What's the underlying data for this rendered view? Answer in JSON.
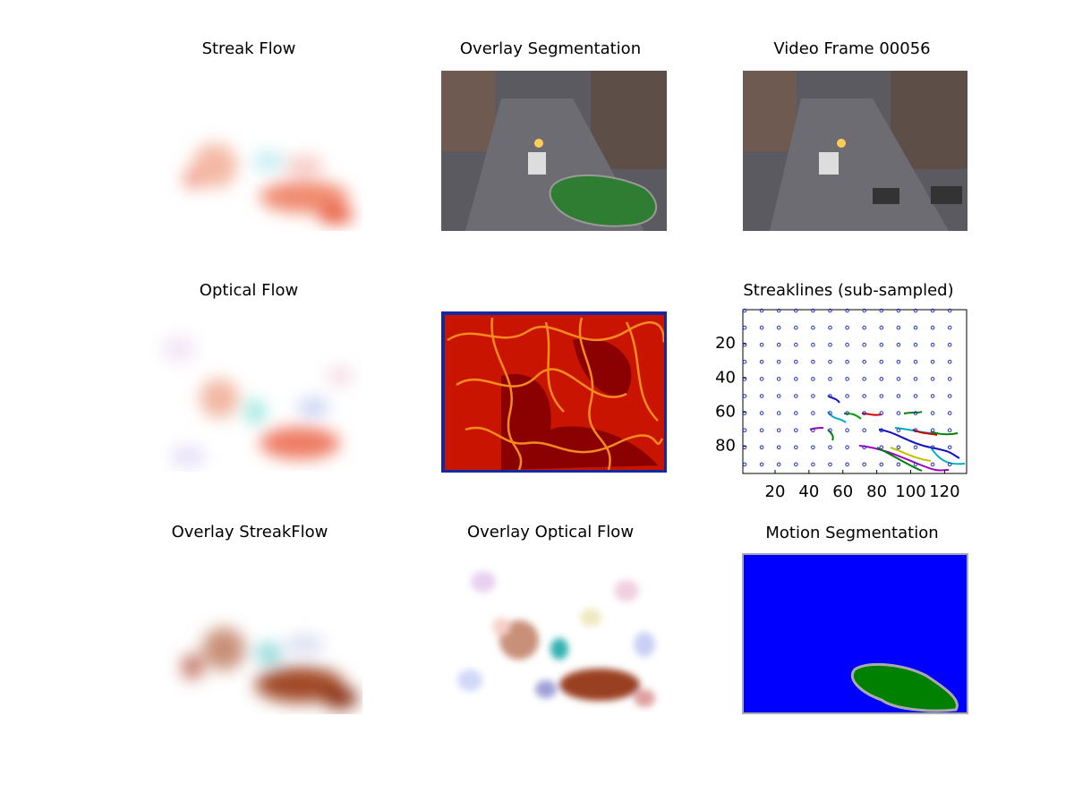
{
  "panels": [
    {
      "title": "Streak Flow"
    },
    {
      "title": "Overlay Segmentation"
    },
    {
      "title": "Video Frame 00056"
    },
    {
      "title": "Optical Flow"
    },
    {
      "title": "Streaklines (sub-sampled)"
    },
    {
      "title": "Overlay StreakFlow"
    },
    {
      "title": "Overlay Optical Flow"
    },
    {
      "title": "Motion Segmentation"
    }
  ],
  "streaklines": {
    "xlim": [
      1,
      133
    ],
    "ylim": [
      0,
      96
    ],
    "xticks": [
      20,
      40,
      60,
      80,
      100,
      120
    ],
    "yticks": [
      20,
      40,
      60,
      80
    ]
  }
}
